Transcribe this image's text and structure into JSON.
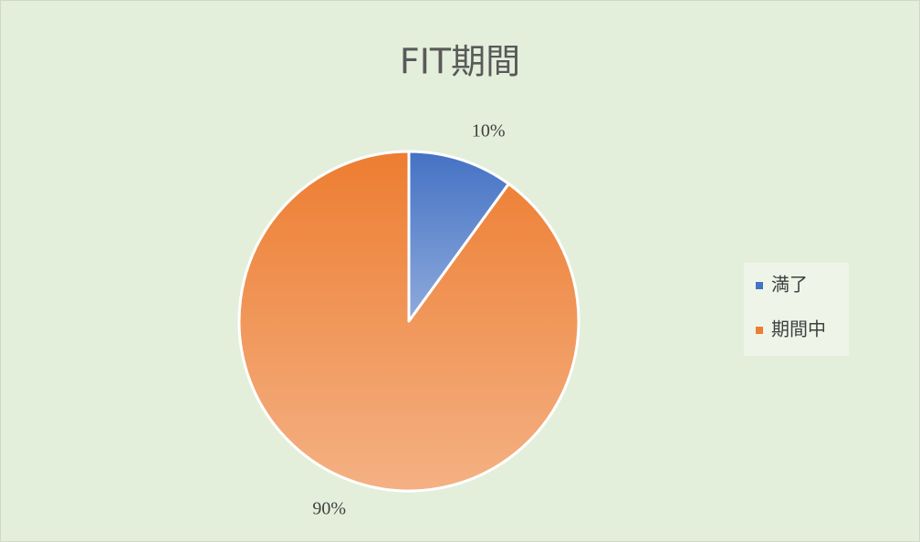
{
  "chart_data": {
    "type": "pie",
    "title": "FIT期間",
    "categories": [
      "満了",
      "期間中"
    ],
    "values": [
      10,
      90
    ],
    "value_labels": [
      "10%",
      "90%"
    ],
    "colors": [
      "#4472c4",
      "#ed7d31"
    ],
    "legend": "right"
  }
}
